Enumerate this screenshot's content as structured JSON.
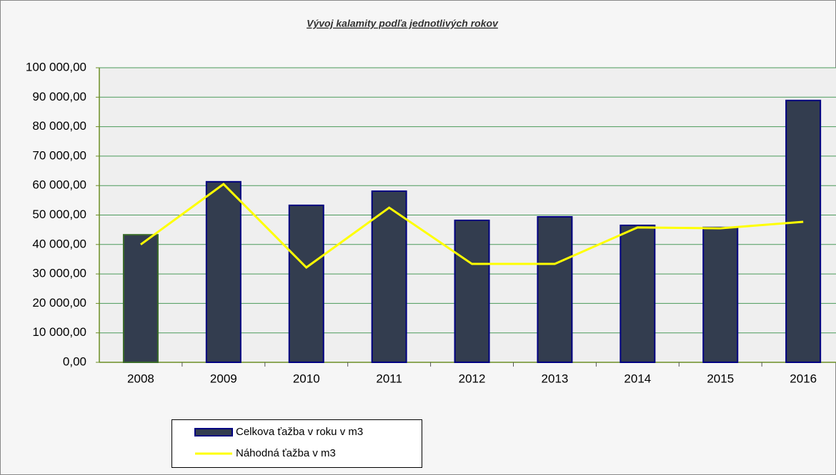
{
  "chart_data": {
    "type": "bar_line",
    "title": "Vývoj kalamity podľa jednotlivých rokov",
    "categories": [
      "2008",
      "2009",
      "2010",
      "2011",
      "2012",
      "2013",
      "2014",
      "2015",
      "2016"
    ],
    "series": [
      {
        "name": "Celkova ťažba v roku v m3",
        "type": "bar",
        "color": "#333d4f",
        "values": [
          43300,
          61300,
          53300,
          58100,
          48200,
          49400,
          46500,
          45800,
          88900
        ]
      },
      {
        "name": "Náhodná ťažba v m3",
        "type": "line",
        "color": "#ffff00",
        "values": [
          40000,
          60500,
          32200,
          52500,
          33400,
          33400,
          45800,
          45500,
          47700
        ]
      }
    ],
    "ylim": [
      0,
      100000
    ],
    "yticks": [
      {
        "value": 0,
        "label": "0,00"
      },
      {
        "value": 10000,
        "label": "10 000,00"
      },
      {
        "value": 20000,
        "label": "20 000,00"
      },
      {
        "value": 30000,
        "label": "30 000,00"
      },
      {
        "value": 40000,
        "label": "40 000,00"
      },
      {
        "value": 50000,
        "label": "50 000,00"
      },
      {
        "value": 60000,
        "label": "60 000,00"
      },
      {
        "value": 70000,
        "label": "70 000,00"
      },
      {
        "value": 80000,
        "label": "80 000,00"
      },
      {
        "value": 90000,
        "label": "90 000,00"
      },
      {
        "value": 100000,
        "label": "100 000,00"
      }
    ],
    "grid": true
  }
}
